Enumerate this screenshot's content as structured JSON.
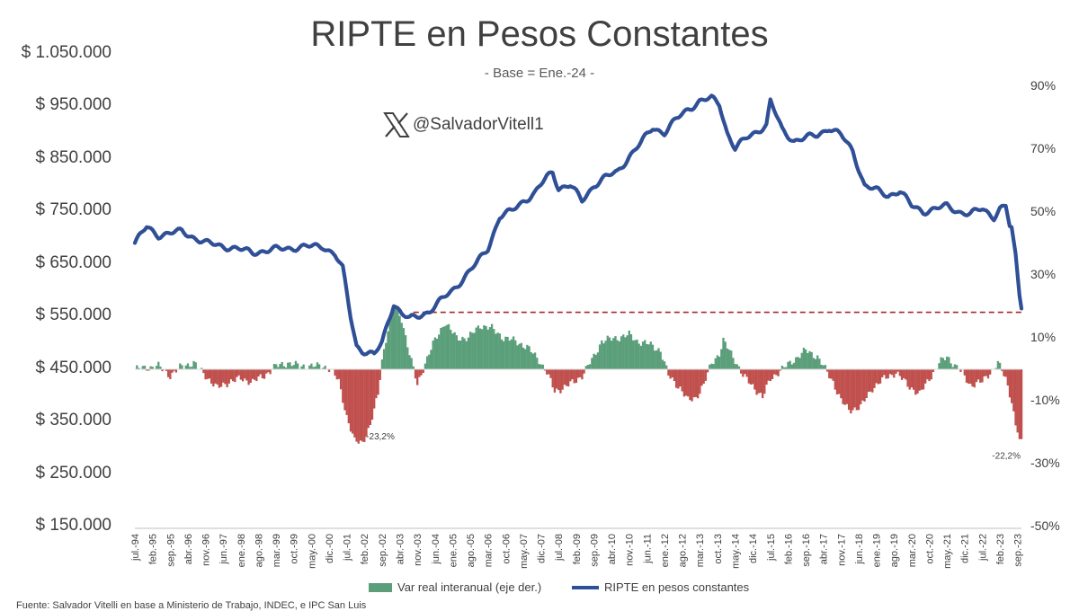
{
  "chart_data": {
    "type": "bar+line",
    "title": "RIPTE en Pesos Constantes",
    "subtitle": "- Base = Ene.-24 -",
    "watermark": "@SalvadorVitell1",
    "left_axis": {
      "ticks": [
        "$ 150.000",
        "$ 250.000",
        "$ 350.000",
        "$ 450.000",
        "$ 550.000",
        "$ 650.000",
        "$ 750.000",
        "$ 850.000",
        "$ 950.000",
        "$ 1.050.000"
      ],
      "tick_values": [
        150000,
        250000,
        350000,
        450000,
        550000,
        650000,
        750000,
        850000,
        950000,
        1050000
      ],
      "ylim": [
        150000,
        1050000
      ]
    },
    "right_axis": {
      "ticks": [
        "-50%",
        "-30%",
        "-10%",
        "10%",
        "30%",
        "50%",
        "70%",
        "90%"
      ],
      "tick_values": [
        -50,
        -30,
        -10,
        10,
        30,
        50,
        70,
        90
      ],
      "ylim": [
        -50,
        90
      ]
    },
    "x_labels": [
      "jul.-94",
      "feb.-95",
      "sep.-95",
      "abr.-96",
      "nov.-96",
      "jun.-97",
      "ene.-98",
      "ago.-98",
      "mar.-99",
      "oct.-99",
      "may.-00",
      "dic.-00",
      "jul.-01",
      "feb.-02",
      "sep.-02",
      "abr.-03",
      "nov.-03",
      "jun.-04",
      "ene.-05",
      "ago.-05",
      "mar.-06",
      "oct.-06",
      "may.-07",
      "dic.-07",
      "jul.-08",
      "feb.-09",
      "sep.-09",
      "abr.-10",
      "nov.-10",
      "jun.-11",
      "ene.-12",
      "ago.-12",
      "mar.-13",
      "oct.-13",
      "may.-14",
      "dic.-14",
      "jul.-15",
      "feb.-16",
      "sep.-16",
      "abr.-17",
      "nov.-17",
      "jun.-18",
      "ene.-19",
      "ago.-19",
      "mar.-20",
      "oct.-20",
      "may.-21",
      "dic.-21",
      "jul.-22",
      "feb.-23",
      "sep.-23"
    ],
    "series": [
      {
        "name": "RIPTE en pesos constantes",
        "type": "line",
        "axis": "left",
        "color": "#2f4f96",
        "anchors": [
          [
            0,
            690000
          ],
          [
            6,
            720000
          ],
          [
            12,
            705000
          ],
          [
            24,
            712000
          ],
          [
            36,
            690000
          ],
          [
            48,
            682000
          ],
          [
            60,
            672000
          ],
          [
            72,
            678000
          ],
          [
            84,
            682000
          ],
          [
            96,
            684000
          ],
          [
            102,
            668000
          ],
          [
            106,
            640000
          ],
          [
            110,
            550000
          ],
          [
            113,
            495000
          ],
          [
            116,
            485000
          ],
          [
            119,
            480000
          ],
          [
            122,
            476000
          ],
          [
            126,
            500000
          ],
          [
            129,
            540000
          ],
          [
            132,
            575000
          ],
          [
            136,
            555000
          ],
          [
            140,
            545000
          ],
          [
            144,
            550000
          ],
          [
            150,
            560000
          ],
          [
            156,
            580000
          ],
          [
            162,
            600000
          ],
          [
            168,
            625000
          ],
          [
            174,
            650000
          ],
          [
            180,
            680000
          ],
          [
            186,
            740000
          ],
          [
            192,
            750000
          ],
          [
            198,
            770000
          ],
          [
            204,
            785000
          ],
          [
            210,
            815000
          ],
          [
            213,
            825000
          ],
          [
            216,
            795000
          ],
          [
            222,
            800000
          ],
          [
            228,
            770000
          ],
          [
            234,
            800000
          ],
          [
            240,
            815000
          ],
          [
            246,
            825000
          ],
          [
            252,
            855000
          ],
          [
            258,
            880000
          ],
          [
            264,
            910000
          ],
          [
            270,
            900000
          ],
          [
            276,
            925000
          ],
          [
            282,
            945000
          ],
          [
            288,
            960000
          ],
          [
            294,
            965000
          ],
          [
            298,
            955000
          ],
          [
            302,
            900000
          ],
          [
            306,
            870000
          ],
          [
            312,
            890000
          ],
          [
            318,
            905000
          ],
          [
            322,
            915000
          ],
          [
            324,
            960000
          ],
          [
            330,
            905000
          ],
          [
            336,
            885000
          ],
          [
            342,
            890000
          ],
          [
            348,
            895000
          ],
          [
            354,
            910000
          ],
          [
            360,
            895000
          ],
          [
            366,
            865000
          ],
          [
            372,
            800000
          ],
          [
            378,
            790000
          ],
          [
            384,
            780000
          ],
          [
            390,
            790000
          ],
          [
            396,
            760000
          ],
          [
            402,
            750000
          ],
          [
            408,
            755000
          ],
          [
            414,
            760000
          ],
          [
            420,
            750000
          ],
          [
            426,
            745000
          ],
          [
            432,
            755000
          ],
          [
            438,
            740000
          ],
          [
            441,
            755000
          ],
          [
            444,
            760000
          ],
          [
            446,
            722000
          ],
          [
            447,
            720000
          ],
          [
            449,
            670000
          ],
          [
            451,
            590000
          ],
          [
            452,
            565000
          ]
        ]
      },
      {
        "name": "Var real interanual (eje der.)",
        "type": "bar",
        "axis": "right",
        "color_positive": "#5b9e7a",
        "color_negative": "#c0504d",
        "anchors": [
          [
            0,
            0
          ],
          [
            12,
            1
          ],
          [
            18,
            -2
          ],
          [
            24,
            1
          ],
          [
            30,
            2
          ],
          [
            36,
            -2
          ],
          [
            42,
            -6
          ],
          [
            48,
            -4
          ],
          [
            54,
            -3
          ],
          [
            60,
            -4
          ],
          [
            66,
            -2
          ],
          [
            72,
            1
          ],
          [
            78,
            2
          ],
          [
            84,
            1
          ],
          [
            90,
            1
          ],
          [
            96,
            1
          ],
          [
            100,
            0
          ],
          [
            104,
            -4
          ],
          [
            108,
            -15
          ],
          [
            112,
            -23
          ],
          [
            116,
            -23.2
          ],
          [
            120,
            -18
          ],
          [
            124,
            -8
          ],
          [
            126,
            3
          ],
          [
            130,
            16
          ],
          [
            132,
            21
          ],
          [
            136,
            16
          ],
          [
            140,
            5
          ],
          [
            144,
            -5
          ],
          [
            148,
            2
          ],
          [
            152,
            8
          ],
          [
            158,
            15
          ],
          [
            164,
            10
          ],
          [
            170,
            10
          ],
          [
            176,
            14
          ],
          [
            182,
            13
          ],
          [
            188,
            10
          ],
          [
            194,
            9
          ],
          [
            200,
            7
          ],
          [
            206,
            3
          ],
          [
            210,
            -1
          ],
          [
            214,
            -7
          ],
          [
            218,
            -6
          ],
          [
            224,
            -4
          ],
          [
            228,
            -2
          ],
          [
            234,
            4
          ],
          [
            238,
            9
          ],
          [
            246,
            10
          ],
          [
            252,
            11
          ],
          [
            256,
            9
          ],
          [
            262,
            8
          ],
          [
            268,
            6
          ],
          [
            272,
            -2
          ],
          [
            278,
            -6
          ],
          [
            282,
            -10
          ],
          [
            286,
            -9
          ],
          [
            290,
            -5
          ],
          [
            294,
            2
          ],
          [
            298,
            5
          ],
          [
            300,
            9
          ],
          [
            302,
            7
          ],
          [
            306,
            3
          ],
          [
            310,
            -2
          ],
          [
            316,
            -6
          ],
          [
            320,
            -9
          ],
          [
            324,
            -3
          ],
          [
            330,
            0
          ],
          [
            336,
            3
          ],
          [
            342,
            6
          ],
          [
            348,
            4
          ],
          [
            352,
            0
          ],
          [
            356,
            -4
          ],
          [
            360,
            -10
          ],
          [
            364,
            -13
          ],
          [
            370,
            -12
          ],
          [
            376,
            -6
          ],
          [
            382,
            -3
          ],
          [
            388,
            -1
          ],
          [
            394,
            -5
          ],
          [
            400,
            -8
          ],
          [
            404,
            -4
          ],
          [
            410,
            2
          ],
          [
            414,
            4
          ],
          [
            420,
            0
          ],
          [
            426,
            -5
          ],
          [
            432,
            -4
          ],
          [
            436,
            -1
          ],
          [
            440,
            2
          ],
          [
            444,
            -3
          ],
          [
            447,
            -10
          ],
          [
            449,
            -18
          ],
          [
            451,
            -22.2
          ]
        ]
      }
    ],
    "annotations": [
      "-23,2%",
      "-22,2%"
    ],
    "reference_line": {
      "value": 558000,
      "style": "dashed",
      "color": "#a52a2a"
    },
    "legend": [
      "Var real interanual (eje der.)",
      "RIPTE en pesos constantes"
    ],
    "source": "Fuente: Salvador Vitelli en base a Ministerio de Trabajo, INDEC, e IPC San Luis"
  }
}
